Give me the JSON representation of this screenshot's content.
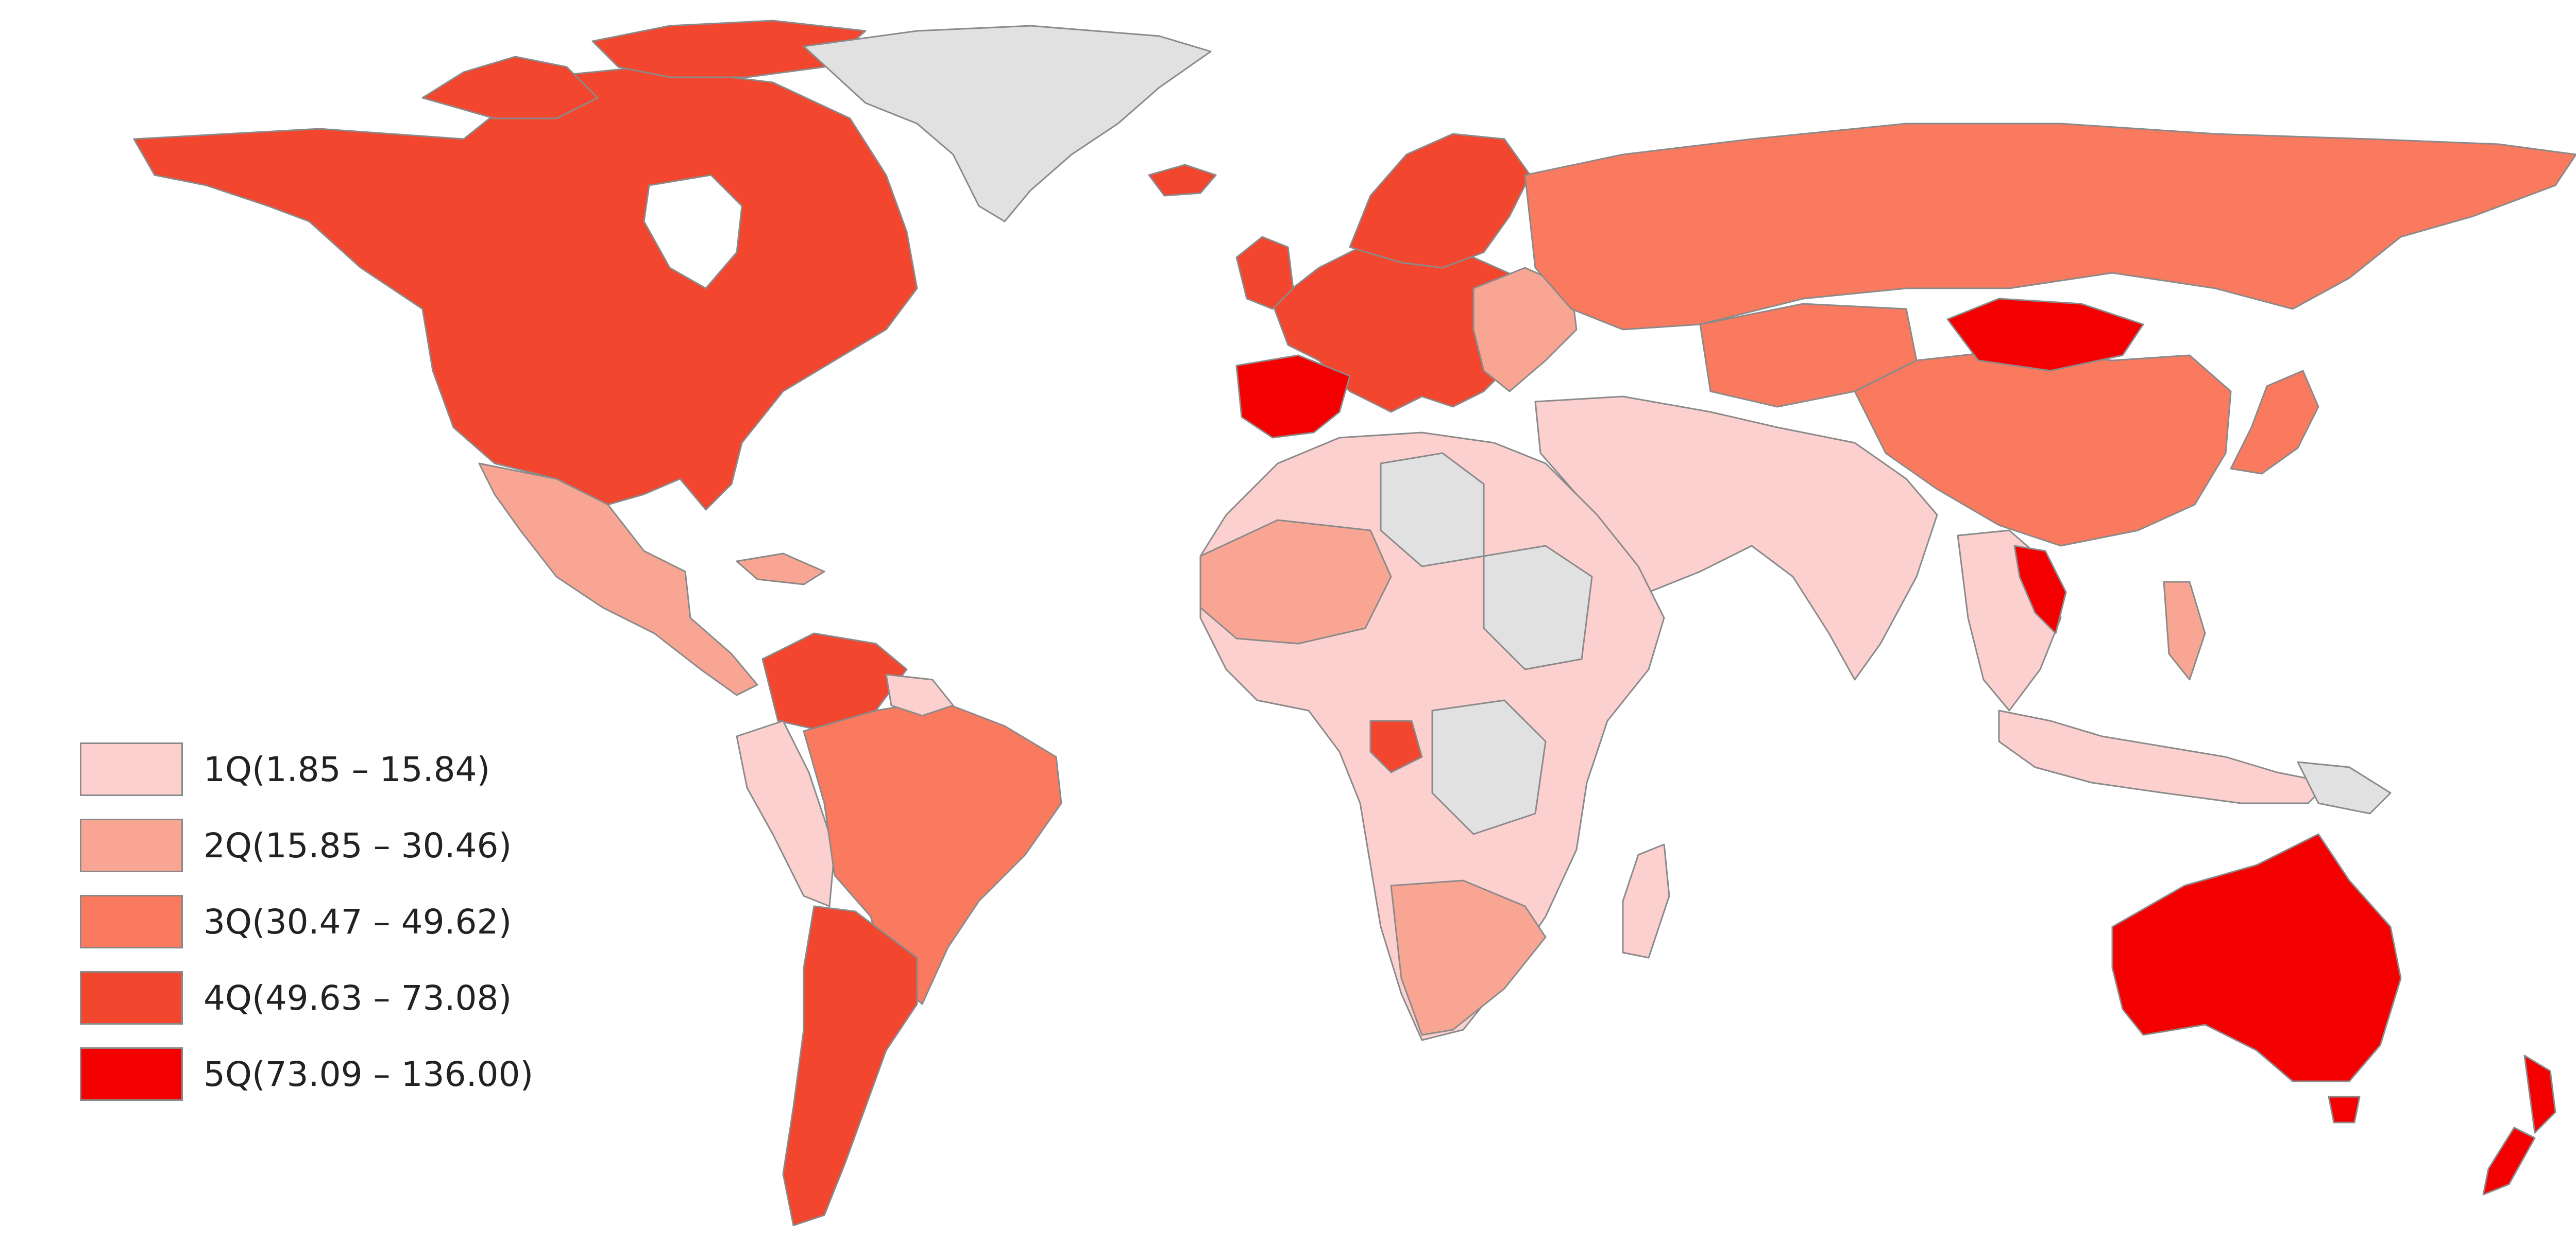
{
  "map": {
    "palette": {
      "no_data": "#e1e1e1",
      "q1": "#fdd0d0",
      "q2": "#f9a593",
      "q3": "#f97a5e",
      "q4": "#f2462f",
      "q5": "#f40000"
    },
    "legend": {
      "items": [
        {
          "label": "1Q(1.85 – 15.84)",
          "color": "#fdd0d0"
        },
        {
          "label": "2Q(15.85 – 30.46)",
          "color": "#f9a593"
        },
        {
          "label": "3Q(30.47 – 49.62)",
          "color": "#f97a5e"
        },
        {
          "label": "4Q(49.63 – 73.08)",
          "color": "#f2462f"
        },
        {
          "label": "5Q(73.09 – 136.00)",
          "color": "#f40000"
        }
      ]
    }
  }
}
